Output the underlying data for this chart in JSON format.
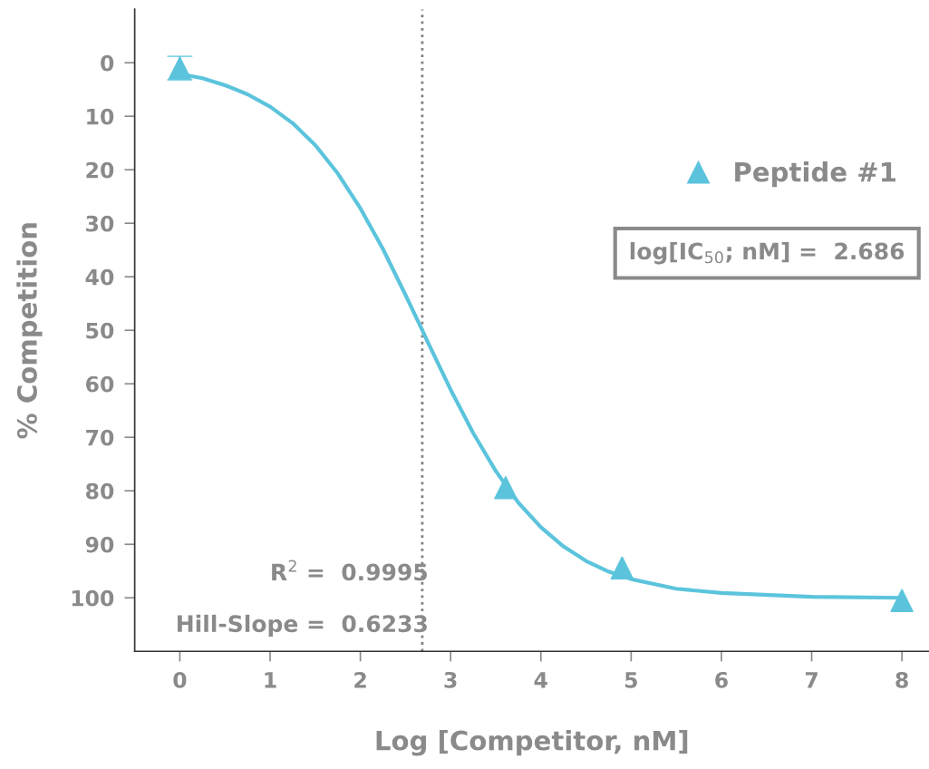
{
  "chart_data": {
    "type": "scatter",
    "xlabel": "Log [Competitor, nM]",
    "ylabel": "% Competition",
    "series": [
      {
        "name": "Peptide #1",
        "color": "#5bc4dc",
        "marker": "triangle",
        "x": [
          0,
          3.61,
          4.9,
          8
        ],
        "values": [
          1.0,
          79.4,
          94.4,
          100.5
        ],
        "errors": [
          2.2,
          null,
          null,
          null
        ]
      },
      {
        "type": "line",
        "color": "#5bc4dc",
        "marker": "none",
        "line_style": "solid",
        "x": [
          0,
          0.25,
          0.5,
          0.75,
          1,
          1.25,
          1.5,
          1.75,
          2,
          2.25,
          2.5,
          2.686,
          2.75,
          3,
          3.25,
          3.5,
          3.75,
          4,
          4.25,
          4.5,
          4.75,
          5,
          5.5,
          6,
          7,
          8
        ],
        "values": [
          2.1,
          2.9,
          4.2,
          5.9,
          8.2,
          11.3,
          15.4,
          20.7,
          27.2,
          34.8,
          43.4,
          50,
          52.3,
          61.1,
          69.2,
          76.3,
          82.2,
          86.8,
          90.4,
          93.1,
          95.1,
          96.5,
          98.3,
          99.1,
          99.8,
          100
        ]
      }
    ],
    "ref_lines": [
      {
        "axis": "x",
        "value": 2.686,
        "color": "#808080",
        "line_style": "dotted"
      }
    ],
    "annotations": [
      "log[IC$_{50}$; nM] =  2.686",
      "R$^{2}$ =  0.9995",
      "Hill-Slope =  0.6233"
    ],
    "xlim": [
      -0.5,
      8.3
    ],
    "xticks": [
      0,
      1,
      2,
      3,
      4,
      5,
      6,
      7,
      8
    ],
    "ylim": [
      110,
      -10
    ],
    "yticks": [
      0,
      10,
      20,
      30,
      40,
      50,
      60,
      70,
      80,
      90,
      100
    ],
    "grid": false,
    "legend": "top right"
  }
}
